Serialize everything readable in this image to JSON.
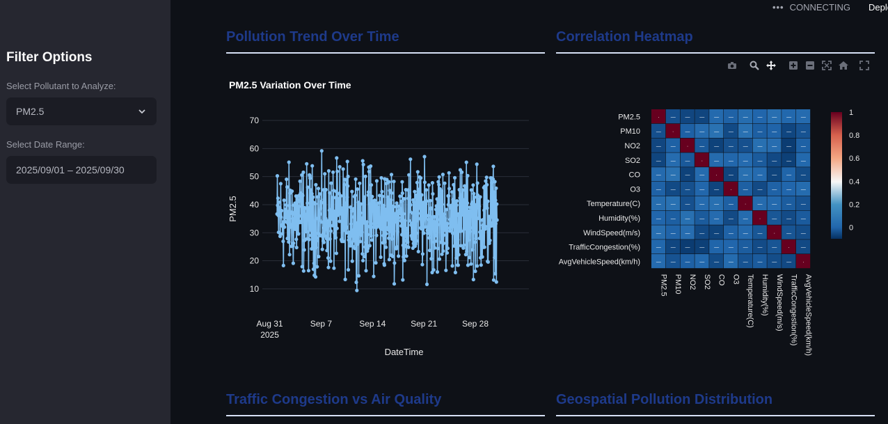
{
  "sidebar": {
    "title": "Filter Options",
    "pollutant_label": "Select Pollutant to Analyze:",
    "pollutant_value": "PM2.5",
    "date_label": "Select Date Range:",
    "date_value": "2025/09/01 – 2025/09/30"
  },
  "topbar": {
    "status": "CONNECTING",
    "deploy": "Deploy"
  },
  "sections": {
    "trend": "Pollution Trend Over Time",
    "heatmap": "Correlation Heatmap",
    "traffic": "Traffic Congestion vs Air Quality",
    "geo": "Geospatial Pollution Distribution"
  },
  "toolbar": [
    "camera-icon",
    "zoom-icon",
    "pan-icon",
    "zoom-in-icon",
    "zoom-out-icon",
    "autoscale-icon",
    "reset-axes-icon",
    "fullscreen-icon"
  ],
  "colors": {
    "background": "#0e1117",
    "sidebar": "#262730",
    "heading": "#1e3a8a",
    "line": "#7fbef0",
    "heat_low": "#1d4f9a",
    "heat_high": "#8b0a1a"
  },
  "chart_data": [
    {
      "type": "line",
      "title": "PM2.5 Variation Over Time",
      "xlabel": "DateTime",
      "ylabel": "PM2.5",
      "x_ticks": [
        "Aug 31\n2025",
        "Sep 7",
        "Sep 14",
        "Sep 21",
        "Sep 28"
      ],
      "x_range_days": [
        -1.0,
        35.3
      ],
      "ylim": [
        5,
        72
      ],
      "y_ticks": [
        10,
        20,
        30,
        40,
        50,
        60,
        70
      ],
      "series": [
        {
          "name": "PM2.5",
          "note": "hourly values approx 6–67, mean ~35",
          "min": 6,
          "max": 67,
          "mean": 35
        }
      ]
    },
    {
      "type": "heatmap",
      "title": "Correlation Heatmap",
      "variables": [
        "PM2.5",
        "PM10",
        "NO2",
        "SO2",
        "CO",
        "O3",
        "Temperature(C)",
        "Humidity(%)",
        "WindSpeed(m/s)",
        "TrafficCongestion(%)",
        "AvgVehicleSpeed(km/h)"
      ],
      "diagonal": 1,
      "colorbar_ticks": [
        "1",
        "0.8",
        "0.6",
        "0.4",
        "0.2",
        "0"
      ],
      "colorbar_range": [
        -0.1,
        1
      ]
    }
  ]
}
